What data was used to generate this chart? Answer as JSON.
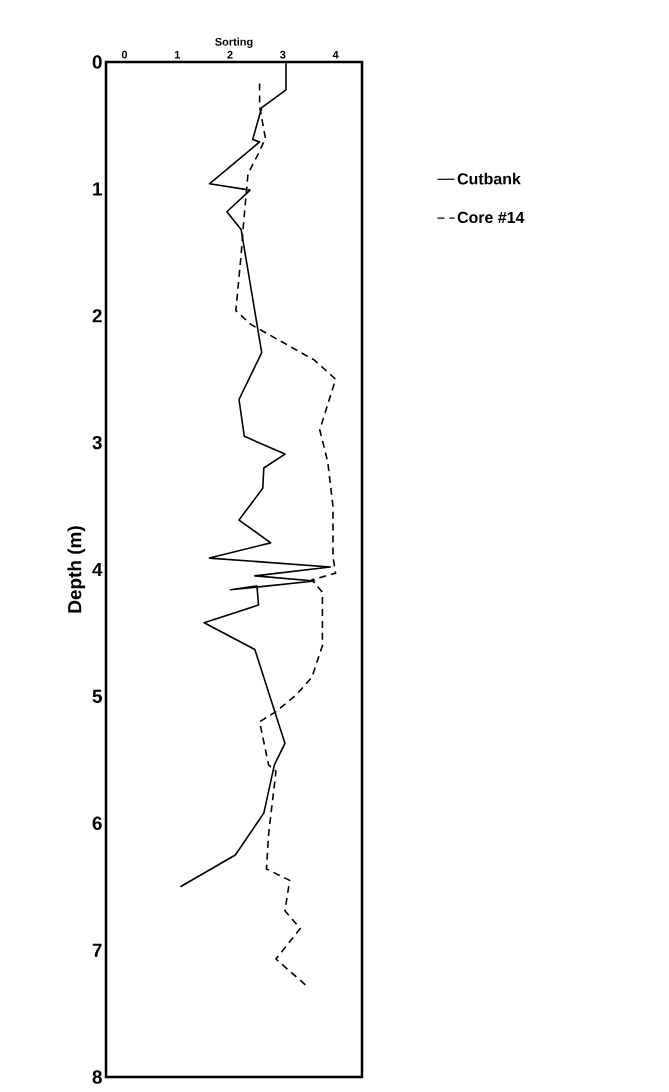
{
  "chart_data": {
    "type": "line",
    "xlabel": "Sorting",
    "ylabel": "Depth (m)",
    "xlim": [
      -0.35,
      4.5
    ],
    "ylim": [
      8,
      0
    ],
    "xticks": [
      0,
      1,
      2,
      3,
      4
    ],
    "yticks": [
      0,
      1,
      2,
      3,
      4,
      5,
      6,
      7,
      8
    ],
    "legend": "right",
    "marker": "none",
    "series": [
      {
        "name": "Cutbank",
        "color": "#000000",
        "line_style": "solid",
        "x": [
          3.06,
          3.06,
          2.6,
          2.47,
          2.43,
          2.56,
          1.61,
          2.38,
          1.94,
          2.21,
          2.6,
          2.17,
          2.27,
          3.04,
          2.64,
          2.62,
          2.17,
          2.77,
          1.61,
          3.9,
          2.47,
          3.6,
          2.01,
          2.51,
          2.54,
          1.51,
          2.47,
          3.04,
          2.84,
          2.64,
          2.1,
          1.06
        ],
        "values": [
          0.01,
          0.22,
          0.36,
          0.55,
          0.61,
          0.63,
          0.96,
          1.01,
          1.18,
          1.32,
          2.29,
          2.66,
          2.95,
          3.09,
          3.2,
          3.36,
          3.61,
          3.79,
          3.91,
          3.98,
          4.05,
          4.09,
          4.16,
          4.13,
          4.28,
          4.42,
          4.63,
          5.37,
          5.54,
          5.92,
          6.25,
          6.5
        ]
      },
      {
        "name": "Core #14",
        "color": "#000000",
        "line_style": "dashed",
        "x": [
          2.56,
          2.56,
          2.67,
          2.54,
          2.34,
          2.25,
          2.21,
          2.11,
          2.4,
          3.6,
          4.0,
          3.7,
          3.85,
          3.95,
          3.95,
          4.0,
          3.55,
          3.75,
          3.75,
          3.55,
          3.25,
          2.87,
          2.56,
          2.73,
          2.87,
          2.73,
          2.69,
          3.13,
          3.04,
          3.33,
          2.87,
          3.5
        ],
        "values": [
          0.17,
          0.35,
          0.6,
          0.72,
          0.88,
          1.3,
          1.52,
          1.96,
          2.07,
          2.35,
          2.5,
          2.9,
          3.15,
          3.5,
          3.9,
          4.03,
          4.08,
          4.18,
          4.6,
          4.85,
          4.99,
          5.12,
          5.2,
          5.54,
          5.59,
          6.09,
          6.36,
          6.45,
          6.69,
          6.83,
          7.07,
          7.3
        ]
      }
    ]
  }
}
